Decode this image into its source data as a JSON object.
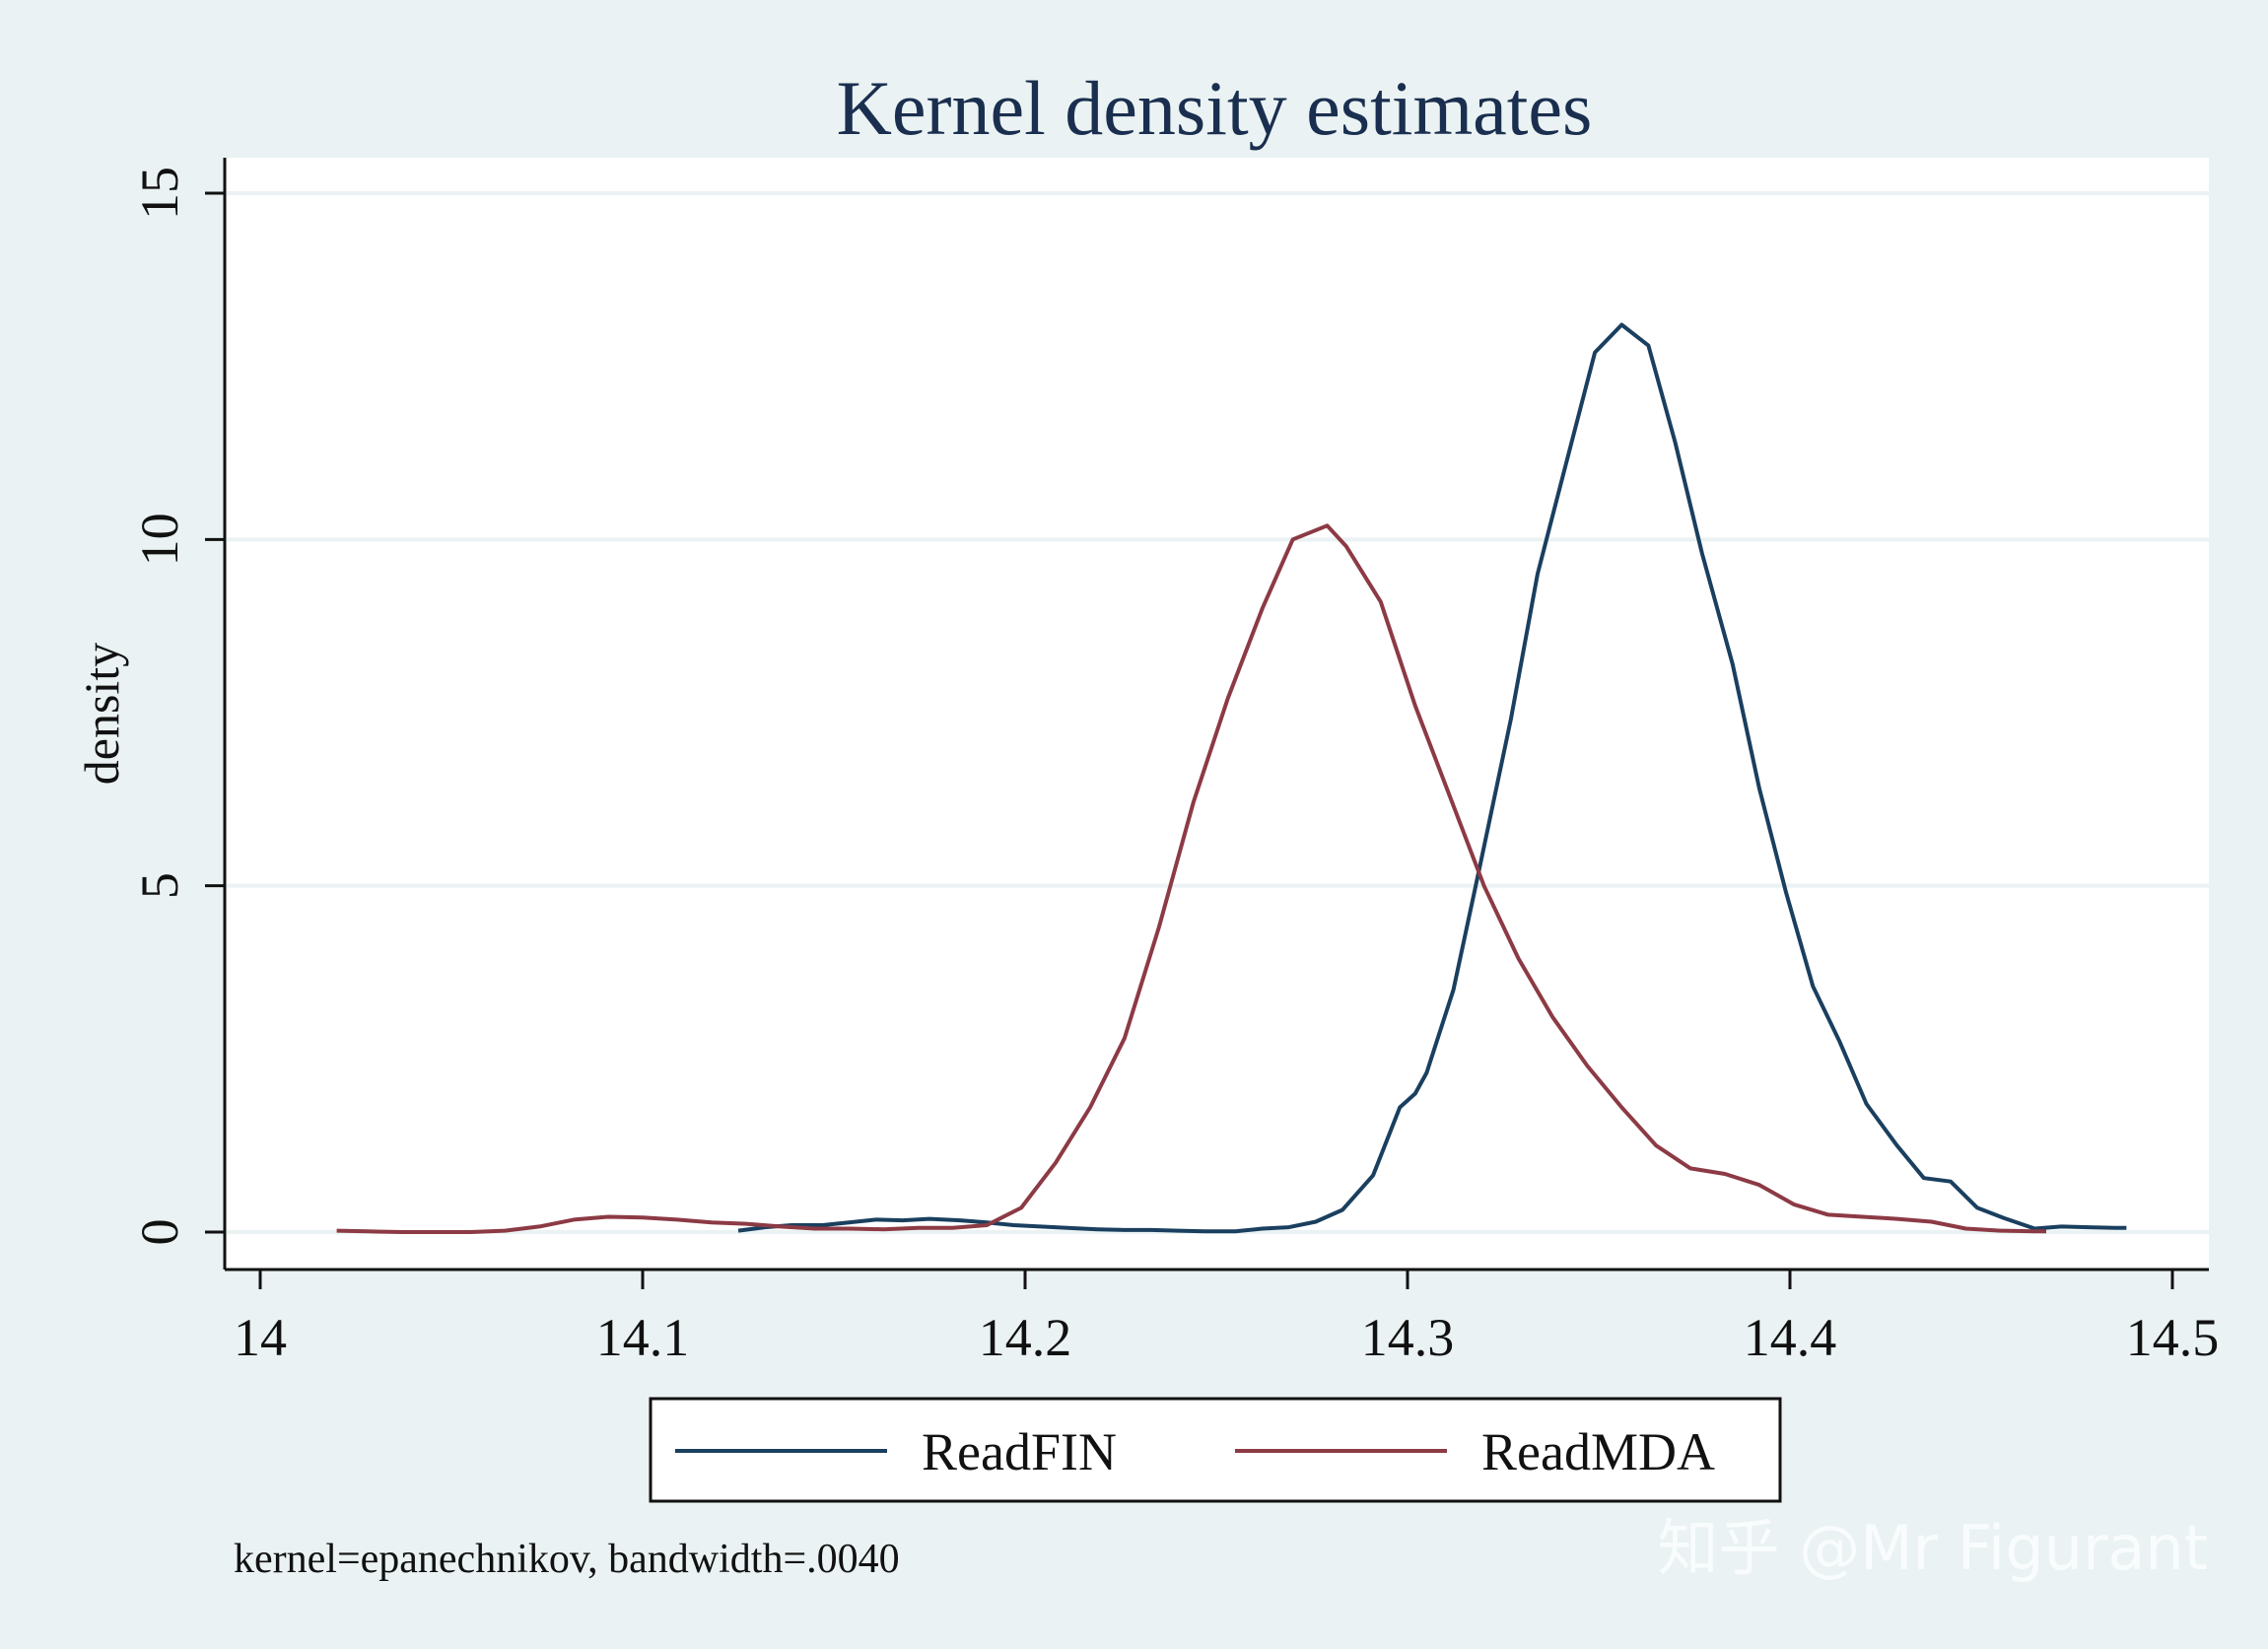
{
  "chart_data": {
    "type": "line",
    "title": "Kernel density estimates",
    "xlabel": "",
    "ylabel": "density",
    "xlim": [
      14,
      14.5
    ],
    "ylim": [
      0,
      15
    ],
    "xticks": [
      "14",
      "14.1",
      "14.2",
      "14.3",
      "14.4",
      "14.5"
    ],
    "yticks": [
      "0",
      "5",
      "10",
      "15"
    ],
    "grid": "horizontal",
    "legend_position": "bottom",
    "note": "kernel=epanechnikov, bandwidth=.0040",
    "watermark": "知乎 @Mr Figurant",
    "series": [
      {
        "name": "ReadFIN",
        "color": "#1a3f5f",
        "x": [
          14.125,
          14.132,
          14.139,
          14.147,
          14.154,
          14.161,
          14.168,
          14.175,
          14.183,
          14.19,
          14.197,
          14.204,
          14.211,
          14.219,
          14.226,
          14.233,
          14.24,
          14.247,
          14.255,
          14.262,
          14.269,
          14.276,
          14.283,
          14.291,
          14.298,
          14.302,
          14.305,
          14.312,
          14.319,
          14.327,
          14.334,
          14.341,
          14.349,
          14.356,
          14.363,
          14.37,
          14.377,
          14.385,
          14.392,
          14.399,
          14.406,
          14.413,
          14.42,
          14.428,
          14.435,
          14.442,
          14.449,
          14.456,
          14.464,
          14.471,
          14.478,
          14.485,
          14.488
        ],
        "y": [
          0.02,
          0.07,
          0.1,
          0.1,
          0.14,
          0.18,
          0.17,
          0.19,
          0.17,
          0.14,
          0.1,
          0.08,
          0.06,
          0.04,
          0.03,
          0.03,
          0.02,
          0.01,
          0.01,
          0.05,
          0.07,
          0.15,
          0.32,
          0.82,
          1.8,
          2.0,
          2.3,
          3.5,
          5.3,
          7.4,
          9.5,
          11.0,
          12.7,
          13.1,
          12.8,
          11.4,
          9.8,
          8.2,
          6.4,
          4.9,
          3.55,
          2.75,
          1.85,
          1.25,
          0.78,
          0.73,
          0.35,
          0.2,
          0.05,
          0.08,
          0.07,
          0.06,
          0.06
        ]
      },
      {
        "name": "ReadMDA",
        "color": "#8c3a44",
        "x": [
          14.02,
          14.028,
          14.037,
          14.046,
          14.055,
          14.064,
          14.073,
          14.082,
          14.091,
          14.1,
          14.109,
          14.118,
          14.127,
          14.136,
          14.145,
          14.154,
          14.163,
          14.172,
          14.181,
          14.19,
          14.199,
          14.208,
          14.217,
          14.226,
          14.235,
          14.244,
          14.253,
          14.262,
          14.27,
          14.279,
          14.284,
          14.293,
          14.302,
          14.311,
          14.32,
          14.329,
          14.338,
          14.347,
          14.356,
          14.365,
          14.374,
          14.383,
          14.392,
          14.401,
          14.41,
          14.419,
          14.428,
          14.437,
          14.446,
          14.455,
          14.464,
          14.467
        ],
        "y": [
          0.02,
          0.01,
          0.0,
          0.0,
          0.0,
          0.02,
          0.08,
          0.18,
          0.22,
          0.21,
          0.18,
          0.14,
          0.12,
          0.08,
          0.05,
          0.05,
          0.04,
          0.06,
          0.06,
          0.1,
          0.35,
          1.0,
          1.8,
          2.8,
          4.4,
          6.2,
          7.7,
          9.0,
          10.0,
          10.2,
          9.9,
          9.1,
          7.6,
          6.3,
          5.0,
          3.95,
          3.1,
          2.4,
          1.8,
          1.25,
          0.92,
          0.84,
          0.68,
          0.4,
          0.25,
          0.22,
          0.19,
          0.15,
          0.05,
          0.02,
          0.01,
          0.01
        ]
      }
    ]
  }
}
